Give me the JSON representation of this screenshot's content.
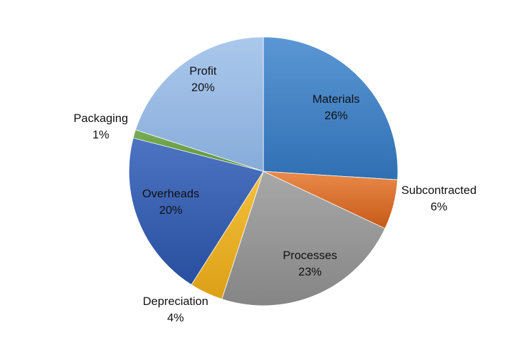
{
  "chart_data": {
    "type": "pie",
    "start_angle_deg": 0,
    "direction": "clockwise",
    "slices": [
      {
        "label": "Materials",
        "pct_label": "26%",
        "value": 26,
        "color": "#4a86c6",
        "color_light": "#5b97d4",
        "color_dark": "#2f6fb3"
      },
      {
        "label": "Subcontracted",
        "pct_label": "6%",
        "value": 6,
        "color": "#e0742f",
        "color_light": "#ea8a4a",
        "color_dark": "#c65a18"
      },
      {
        "label": "Processes",
        "pct_label": "23%",
        "value": 23,
        "color": "#9a9a9a",
        "color_light": "#a8a8a8",
        "color_dark": "#858585"
      },
      {
        "label": "Depreciation",
        "pct_label": "4%",
        "value": 4,
        "color": "#f0b429",
        "color_light": "#f3c03d",
        "color_dark": "#dca016"
      },
      {
        "label": "Overheads",
        "pct_label": "20%",
        "value": 20,
        "color": "#3d63b4",
        "color_light": "#4d74c2",
        "color_dark": "#284f9f"
      },
      {
        "label": "Packaging",
        "pct_label": "1%",
        "value": 1,
        "color": "#6ea24a",
        "color_light": "#79ad54",
        "color_dark": "#5e923c"
      },
      {
        "label": "Profit",
        "pct_label": "20%",
        "value": 20,
        "color": "#9dbde5",
        "color_light": "#abc8ec",
        "color_dark": "#87acda"
      }
    ]
  }
}
